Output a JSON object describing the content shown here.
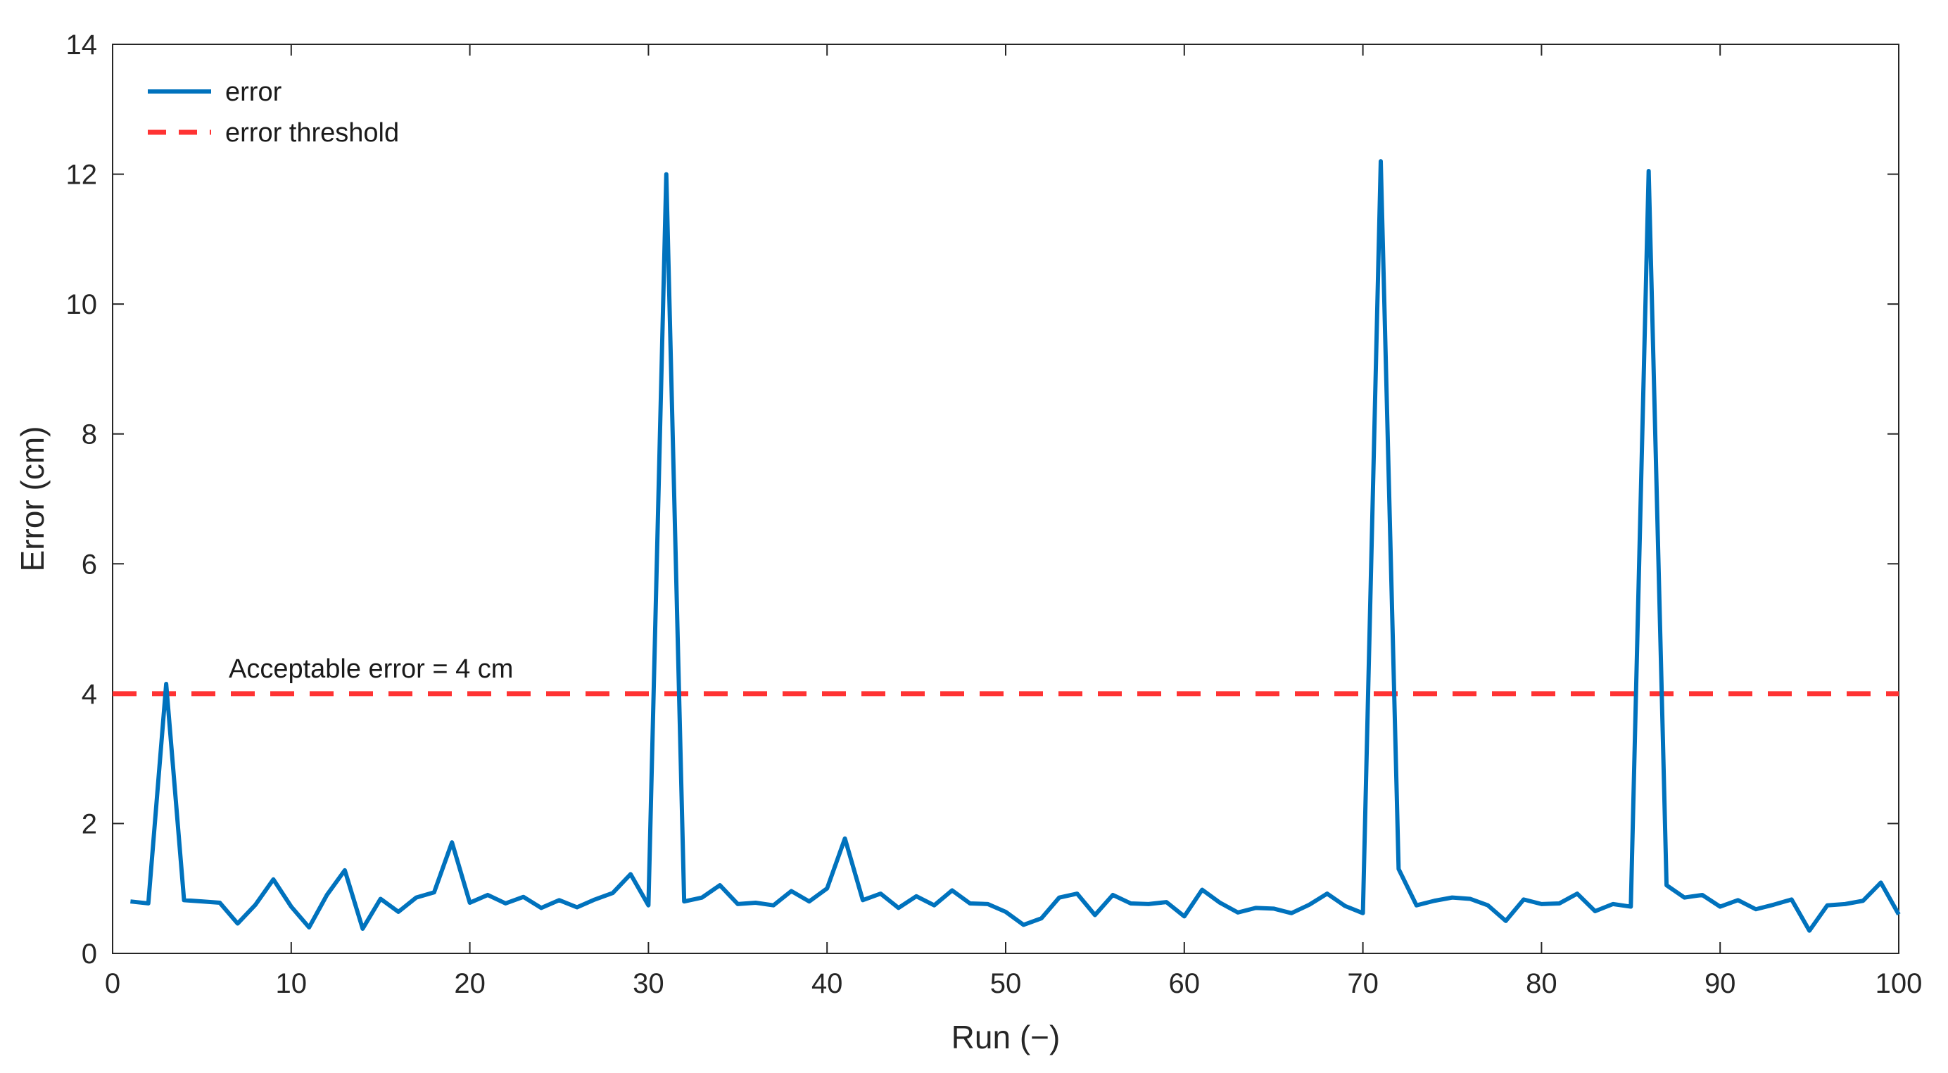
{
  "chart_data": {
    "type": "line",
    "title": "",
    "xlabel": "Run (−)",
    "ylabel": "Error (cm)",
    "xlim": [
      0,
      100
    ],
    "ylim": [
      0,
      14
    ],
    "x_ticks": [
      0,
      10,
      20,
      30,
      40,
      50,
      60,
      70,
      80,
      90,
      100
    ],
    "y_ticks": [
      0,
      2,
      4,
      6,
      8,
      10,
      12,
      14
    ],
    "grid": false,
    "legend_position": "top-left",
    "series": [
      {
        "name": "error",
        "color": "#0072BD",
        "style": "solid",
        "x": [
          1,
          2,
          3,
          4,
          5,
          6,
          7,
          8,
          9,
          10,
          11,
          12,
          13,
          14,
          15,
          16,
          17,
          18,
          19,
          20,
          21,
          22,
          23,
          24,
          25,
          26,
          27,
          28,
          29,
          30,
          31,
          32,
          33,
          34,
          35,
          36,
          37,
          38,
          39,
          40,
          41,
          42,
          43,
          44,
          45,
          46,
          47,
          48,
          49,
          50,
          51,
          52,
          53,
          54,
          55,
          56,
          57,
          58,
          59,
          60,
          61,
          62,
          63,
          64,
          65,
          66,
          67,
          68,
          69,
          70,
          71,
          72,
          73,
          74,
          75,
          76,
          77,
          78,
          79,
          80,
          81,
          82,
          83,
          84,
          85,
          86,
          87,
          88,
          89,
          90,
          91,
          92,
          93,
          94,
          95,
          96,
          97,
          98,
          99,
          100
        ],
        "values": [
          0.8,
          0.77,
          4.15,
          0.82,
          0.8,
          0.78,
          0.46,
          0.75,
          1.14,
          0.72,
          0.4,
          0.9,
          1.28,
          0.38,
          0.84,
          0.64,
          0.86,
          0.94,
          1.71,
          0.78,
          0.9,
          0.77,
          0.87,
          0.7,
          0.82,
          0.71,
          0.83,
          0.93,
          1.22,
          0.74,
          12.0,
          0.8,
          0.86,
          1.05,
          0.76,
          0.78,
          0.74,
          0.96,
          0.8,
          1.0,
          1.77,
          0.82,
          0.92,
          0.7,
          0.88,
          0.74,
          0.97,
          0.77,
          0.76,
          0.64,
          0.44,
          0.54,
          0.86,
          0.92,
          0.59,
          0.9,
          0.77,
          0.76,
          0.79,
          0.57,
          0.98,
          0.78,
          0.63,
          0.7,
          0.69,
          0.62,
          0.75,
          0.92,
          0.73,
          0.62,
          12.2,
          1.3,
          0.74,
          0.81,
          0.86,
          0.84,
          0.74,
          0.5,
          0.83,
          0.76,
          0.77,
          0.92,
          0.65,
          0.76,
          0.72,
          12.05,
          1.05,
          0.86,
          0.9,
          0.72,
          0.82,
          0.68,
          0.75,
          0.83,
          0.35,
          0.74,
          0.76,
          0.81,
          1.09,
          0.6
        ]
      },
      {
        "name": "error threshold",
        "color": "#FF3333",
        "style": "dashed",
        "x": [
          0,
          100
        ],
        "values": [
          4,
          4
        ]
      }
    ],
    "annotations": [
      {
        "text": "Acceptable error = 4 cm",
        "x": 6.5,
        "y": 4.25
      }
    ]
  }
}
